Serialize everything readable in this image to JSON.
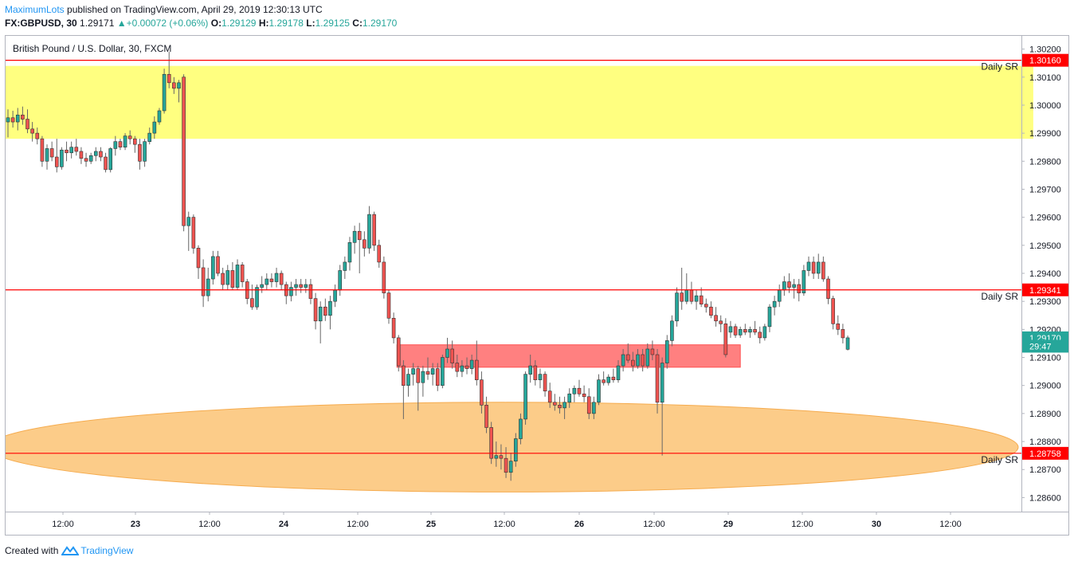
{
  "header": {
    "publisher": "MaximumLots",
    "published_text": "published on TradingView.com, April 29, 2019 12:30:13 UTC",
    "symbol": "FX:GBPUSD, 30",
    "last": "1.29171",
    "change": "+0.00072 (+0.06%)",
    "o_label": "O:",
    "o_val": "1.29129",
    "h_label": "H:",
    "h_val": "1.29178",
    "l_label": "L:",
    "l_val": "1.29125",
    "c_label": "C:",
    "c_val": "1.29170"
  },
  "footer": {
    "created_with": "Created with",
    "brand": "TradingView"
  },
  "colors": {
    "up": "#26a69a",
    "down": "#ef5350",
    "sr_line": "#ff0000",
    "yellow_zone": "#ffff80",
    "red_zone": "#ff8080",
    "orange_zone": "#fcc77d"
  },
  "chart_data": {
    "type": "candlestick",
    "title": "British Pound / U.S. Dollar, 30, FXCM",
    "ylim": [
      1.2855,
      1.3025
    ],
    "y_ticks": [
      "1.30200",
      "1.30100",
      "1.30000",
      "1.29900",
      "1.29800",
      "1.29700",
      "1.29600",
      "1.29500",
      "1.29400",
      "1.29300",
      "1.29200",
      "1.29100",
      "1.29000",
      "1.28900",
      "1.28800",
      "1.28700",
      "1.28600"
    ],
    "x_labels": [
      "12:00",
      "23",
      "12:00",
      "24",
      "12:00",
      "25",
      "12:00",
      "26",
      "12:00",
      "29",
      "12:00",
      "30",
      "12:00"
    ],
    "price_tags": [
      {
        "label": "1.30160",
        "value": 1.3016,
        "color": "#ff0000"
      },
      {
        "label": "1.29341",
        "value": 1.29341,
        "color": "#ff0000"
      },
      {
        "label": "1.28758",
        "value": 1.28758,
        "color": "#ff0000"
      },
      {
        "label": "1.29170",
        "value": 1.2917,
        "color": "#26a69a"
      },
      {
        "label": "29:47",
        "value": 1.2914,
        "color": "#26a69a"
      }
    ],
    "sr_lines": [
      {
        "value": 1.3016,
        "label": "Daily SR"
      },
      {
        "value": 1.29341,
        "label": "Daily SR"
      },
      {
        "value": 1.28758,
        "label": "Daily SR"
      }
    ],
    "zones": [
      {
        "kind": "rect",
        "from": 1.2988,
        "to": 1.3014,
        "x_start": 0,
        "x_end": 210,
        "color": "#ffff80"
      },
      {
        "kind": "rect",
        "from": 1.29065,
        "to": 1.29145,
        "x_start": 80,
        "x_end": 150,
        "color": "#ff8080"
      },
      {
        "kind": "ellipse",
        "center": 1.2878,
        "half_height": 0.0016,
        "x_start": 0,
        "x_end": 203,
        "color": "#fcc77d"
      }
    ],
    "candles": [
      {
        "o": 1.2994,
        "h": 1.29985,
        "l": 1.29885,
        "c": 1.29955
      },
      {
        "o": 1.29955,
        "h": 1.2998,
        "l": 1.2992,
        "c": 1.2994
      },
      {
        "o": 1.2994,
        "h": 1.2999,
        "l": 1.2991,
        "c": 1.29965
      },
      {
        "o": 1.29965,
        "h": 1.29995,
        "l": 1.2993,
        "c": 1.2995
      },
      {
        "o": 1.2995,
        "h": 1.29985,
        "l": 1.299,
        "c": 1.29915
      },
      {
        "o": 1.29915,
        "h": 1.2994,
        "l": 1.2987,
        "c": 1.299
      },
      {
        "o": 1.299,
        "h": 1.2992,
        "l": 1.2986,
        "c": 1.2988
      },
      {
        "o": 1.2988,
        "h": 1.2989,
        "l": 1.2978,
        "c": 1.298
      },
      {
        "o": 1.298,
        "h": 1.2986,
        "l": 1.2977,
        "c": 1.29845
      },
      {
        "o": 1.29845,
        "h": 1.2987,
        "l": 1.298,
        "c": 1.29815
      },
      {
        "o": 1.29815,
        "h": 1.2988,
        "l": 1.2976,
        "c": 1.2978
      },
      {
        "o": 1.2978,
        "h": 1.2985,
        "l": 1.2977,
        "c": 1.2984
      },
      {
        "o": 1.2984,
        "h": 1.2987,
        "l": 1.298,
        "c": 1.2983
      },
      {
        "o": 1.2983,
        "h": 1.2987,
        "l": 1.2981,
        "c": 1.2985
      },
      {
        "o": 1.2985,
        "h": 1.2988,
        "l": 1.2982,
        "c": 1.29835
      },
      {
        "o": 1.29835,
        "h": 1.2985,
        "l": 1.2979,
        "c": 1.2981
      },
      {
        "o": 1.2981,
        "h": 1.2983,
        "l": 1.2978,
        "c": 1.298
      },
      {
        "o": 1.298,
        "h": 1.2983,
        "l": 1.2979,
        "c": 1.2982
      },
      {
        "o": 1.2982,
        "h": 1.2985,
        "l": 1.298,
        "c": 1.29835
      },
      {
        "o": 1.29835,
        "h": 1.2985,
        "l": 1.298,
        "c": 1.29815
      },
      {
        "o": 1.29815,
        "h": 1.2983,
        "l": 1.2976,
        "c": 1.2977
      },
      {
        "o": 1.2977,
        "h": 1.2985,
        "l": 1.2976,
        "c": 1.29845
      },
      {
        "o": 1.29845,
        "h": 1.2989,
        "l": 1.2982,
        "c": 1.2987
      },
      {
        "o": 1.2987,
        "h": 1.2988,
        "l": 1.2984,
        "c": 1.2985
      },
      {
        "o": 1.2985,
        "h": 1.299,
        "l": 1.2984,
        "c": 1.2989
      },
      {
        "o": 1.2989,
        "h": 1.2991,
        "l": 1.2986,
        "c": 1.2988
      },
      {
        "o": 1.2988,
        "h": 1.2989,
        "l": 1.2983,
        "c": 1.2986
      },
      {
        "o": 1.2986,
        "h": 1.2988,
        "l": 1.2977,
        "c": 1.298
      },
      {
        "o": 1.298,
        "h": 1.2988,
        "l": 1.2978,
        "c": 1.2987
      },
      {
        "o": 1.2987,
        "h": 1.2992,
        "l": 1.2986,
        "c": 1.299
      },
      {
        "o": 1.299,
        "h": 1.2996,
        "l": 1.2988,
        "c": 1.2994
      },
      {
        "o": 1.2994,
        "h": 1.2999,
        "l": 1.2993,
        "c": 1.2998
      },
      {
        "o": 1.2998,
        "h": 1.3013,
        "l": 1.2997,
        "c": 1.3011
      },
      {
        "o": 1.3011,
        "h": 1.3019,
        "l": 1.3006,
        "c": 1.3008
      },
      {
        "o": 1.3008,
        "h": 1.301,
        "l": 1.3004,
        "c": 1.3006
      },
      {
        "o": 1.3006,
        "h": 1.3009,
        "l": 1.3001,
        "c": 1.3008
      },
      {
        "o": 1.301,
        "h": 1.3011,
        "l": 1.2955,
        "c": 1.2957
      },
      {
        "o": 1.2957,
        "h": 1.2962,
        "l": 1.2948,
        "c": 1.296
      },
      {
        "o": 1.296,
        "h": 1.2961,
        "l": 1.2947,
        "c": 1.2949
      },
      {
        "o": 1.2949,
        "h": 1.295,
        "l": 1.2938,
        "c": 1.2942
      },
      {
        "o": 1.2942,
        "h": 1.2945,
        "l": 1.2928,
        "c": 1.2932
      },
      {
        "o": 1.2932,
        "h": 1.2942,
        "l": 1.293,
        "c": 1.2938
      },
      {
        "o": 1.2938,
        "h": 1.2948,
        "l": 1.2936,
        "c": 1.2946
      },
      {
        "o": 1.2946,
        "h": 1.2948,
        "l": 1.2939,
        "c": 1.294
      },
      {
        "o": 1.294,
        "h": 1.2942,
        "l": 1.2934,
        "c": 1.2936
      },
      {
        "o": 1.2936,
        "h": 1.2943,
        "l": 1.2934,
        "c": 1.2941
      },
      {
        "o": 1.2941,
        "h": 1.2944,
        "l": 1.2934,
        "c": 1.2935
      },
      {
        "o": 1.2935,
        "h": 1.2945,
        "l": 1.2934,
        "c": 1.2943
      },
      {
        "o": 1.2943,
        "h": 1.2944,
        "l": 1.2935,
        "c": 1.2937
      },
      {
        "o": 1.2937,
        "h": 1.2938,
        "l": 1.2929,
        "c": 1.2931
      },
      {
        "o": 1.2931,
        "h": 1.2936,
        "l": 1.2927,
        "c": 1.2928
      },
      {
        "o": 1.2928,
        "h": 1.2936,
        "l": 1.2927,
        "c": 1.2935
      },
      {
        "o": 1.2935,
        "h": 1.2939,
        "l": 1.2933,
        "c": 1.2936
      },
      {
        "o": 1.2936,
        "h": 1.294,
        "l": 1.2934,
        "c": 1.2938
      },
      {
        "o": 1.2938,
        "h": 1.294,
        "l": 1.2935,
        "c": 1.2937
      },
      {
        "o": 1.2937,
        "h": 1.2942,
        "l": 1.2935,
        "c": 1.294
      },
      {
        "o": 1.294,
        "h": 1.2941,
        "l": 1.2934,
        "c": 1.2936
      },
      {
        "o": 1.2936,
        "h": 1.2937,
        "l": 1.2929,
        "c": 1.2932
      },
      {
        "o": 1.2932,
        "h": 1.2937,
        "l": 1.293,
        "c": 1.2935
      },
      {
        "o": 1.2935,
        "h": 1.2938,
        "l": 1.2932,
        "c": 1.2936
      },
      {
        "o": 1.2936,
        "h": 1.2938,
        "l": 1.2933,
        "c": 1.2935
      },
      {
        "o": 1.2935,
        "h": 1.2938,
        "l": 1.2933,
        "c": 1.2936
      },
      {
        "o": 1.2936,
        "h": 1.2938,
        "l": 1.2929,
        "c": 1.2931
      },
      {
        "o": 1.2931,
        "h": 1.2933,
        "l": 1.292,
        "c": 1.2923
      },
      {
        "o": 1.2923,
        "h": 1.293,
        "l": 1.2915,
        "c": 1.2928
      },
      {
        "o": 1.2928,
        "h": 1.2931,
        "l": 1.2923,
        "c": 1.2925
      },
      {
        "o": 1.2925,
        "h": 1.2932,
        "l": 1.292,
        "c": 1.293
      },
      {
        "o": 1.293,
        "h": 1.2936,
        "l": 1.2928,
        "c": 1.2934
      },
      {
        "o": 1.2934,
        "h": 1.2943,
        "l": 1.2932,
        "c": 1.2941
      },
      {
        "o": 1.2941,
        "h": 1.2946,
        "l": 1.2938,
        "c": 1.2944
      },
      {
        "o": 1.2944,
        "h": 1.2953,
        "l": 1.2941,
        "c": 1.2951
      },
      {
        "o": 1.2951,
        "h": 1.2957,
        "l": 1.2947,
        "c": 1.2955
      },
      {
        "o": 1.2955,
        "h": 1.2958,
        "l": 1.294,
        "c": 1.2952
      },
      {
        "o": 1.2952,
        "h": 1.2955,
        "l": 1.2946,
        "c": 1.2949
      },
      {
        "o": 1.2949,
        "h": 1.2964,
        "l": 1.2947,
        "c": 1.2961
      },
      {
        "o": 1.2961,
        "h": 1.2962,
        "l": 1.2948,
        "c": 1.295
      },
      {
        "o": 1.295,
        "h": 1.2952,
        "l": 1.2942,
        "c": 1.2944
      },
      {
        "o": 1.2944,
        "h": 1.2946,
        "l": 1.2931,
        "c": 1.2933
      },
      {
        "o": 1.2933,
        "h": 1.2934,
        "l": 1.2922,
        "c": 1.2924
      },
      {
        "o": 1.2924,
        "h": 1.2926,
        "l": 1.2915,
        "c": 1.2917
      },
      {
        "o": 1.2917,
        "h": 1.2918,
        "l": 1.2905,
        "c": 1.2907
      },
      {
        "o": 1.2907,
        "h": 1.2909,
        "l": 1.2888,
        "c": 1.29
      },
      {
        "o": 1.29,
        "h": 1.2906,
        "l": 1.2896,
        "c": 1.2904
      },
      {
        "o": 1.2904,
        "h": 1.2908,
        "l": 1.29,
        "c": 1.2906
      },
      {
        "o": 1.2906,
        "h": 1.2907,
        "l": 1.2891,
        "c": 1.2901
      },
      {
        "o": 1.2901,
        "h": 1.2907,
        "l": 1.2896,
        "c": 1.2905
      },
      {
        "o": 1.2905,
        "h": 1.291,
        "l": 1.2902,
        "c": 1.2904
      },
      {
        "o": 1.2904,
        "h": 1.2908,
        "l": 1.29,
        "c": 1.2906
      },
      {
        "o": 1.2906,
        "h": 1.2908,
        "l": 1.2898,
        "c": 1.29
      },
      {
        "o": 1.29,
        "h": 1.2911,
        "l": 1.2899,
        "c": 1.291
      },
      {
        "o": 1.291,
        "h": 1.2917,
        "l": 1.2908,
        "c": 1.2913
      },
      {
        "o": 1.2913,
        "h": 1.2916,
        "l": 1.2906,
        "c": 1.2908
      },
      {
        "o": 1.2908,
        "h": 1.2911,
        "l": 1.2903,
        "c": 1.2905
      },
      {
        "o": 1.2905,
        "h": 1.2909,
        "l": 1.2903,
        "c": 1.2907
      },
      {
        "o": 1.2907,
        "h": 1.291,
        "l": 1.2904,
        "c": 1.2906
      },
      {
        "o": 1.2906,
        "h": 1.2911,
        "l": 1.2904,
        "c": 1.2909
      },
      {
        "o": 1.2909,
        "h": 1.2916,
        "l": 1.29,
        "c": 1.2902
      },
      {
        "o": 1.2902,
        "h": 1.2905,
        "l": 1.289,
        "c": 1.2893
      },
      {
        "o": 1.2893,
        "h": 1.2896,
        "l": 1.2883,
        "c": 1.2885
      },
      {
        "o": 1.2885,
        "h": 1.2887,
        "l": 1.2872,
        "c": 1.2874
      },
      {
        "o": 1.2874,
        "h": 1.288,
        "l": 1.2871,
        "c": 1.2875
      },
      {
        "o": 1.2875,
        "h": 1.2879,
        "l": 1.287,
        "c": 1.2874
      },
      {
        "o": 1.2874,
        "h": 1.2878,
        "l": 1.2867,
        "c": 1.2869
      },
      {
        "o": 1.2869,
        "h": 1.2876,
        "l": 1.2866,
        "c": 1.2873
      },
      {
        "o": 1.2873,
        "h": 1.2883,
        "l": 1.2871,
        "c": 1.2881
      },
      {
        "o": 1.2881,
        "h": 1.289,
        "l": 1.2879,
        "c": 1.2888
      },
      {
        "o": 1.2888,
        "h": 1.2905,
        "l": 1.2886,
        "c": 1.2904
      },
      {
        "o": 1.2904,
        "h": 1.2911,
        "l": 1.2901,
        "c": 1.2907
      },
      {
        "o": 1.2907,
        "h": 1.2909,
        "l": 1.29,
        "c": 1.2902
      },
      {
        "o": 1.2902,
        "h": 1.2906,
        "l": 1.2899,
        "c": 1.2904
      },
      {
        "o": 1.2904,
        "h": 1.2905,
        "l": 1.2896,
        "c": 1.2898
      },
      {
        "o": 1.2898,
        "h": 1.2901,
        "l": 1.2892,
        "c": 1.2894
      },
      {
        "o": 1.2894,
        "h": 1.2897,
        "l": 1.2891,
        "c": 1.2893
      },
      {
        "o": 1.2893,
        "h": 1.2896,
        "l": 1.289,
        "c": 1.2892
      },
      {
        "o": 1.2892,
        "h": 1.2896,
        "l": 1.2888,
        "c": 1.2894
      },
      {
        "o": 1.2894,
        "h": 1.2899,
        "l": 1.2892,
        "c": 1.2897
      },
      {
        "o": 1.2897,
        "h": 1.29,
        "l": 1.2894,
        "c": 1.2899
      },
      {
        "o": 1.2899,
        "h": 1.2902,
        "l": 1.2896,
        "c": 1.2897
      },
      {
        "o": 1.2897,
        "h": 1.29,
        "l": 1.2894,
        "c": 1.2896
      },
      {
        "o": 1.2896,
        "h": 1.2899,
        "l": 1.2888,
        "c": 1.289
      },
      {
        "o": 1.289,
        "h": 1.2896,
        "l": 1.2888,
        "c": 1.2894
      },
      {
        "o": 1.2894,
        "h": 1.2904,
        "l": 1.2893,
        "c": 1.2902
      },
      {
        "o": 1.2902,
        "h": 1.2905,
        "l": 1.29,
        "c": 1.2901
      },
      {
        "o": 1.2901,
        "h": 1.2904,
        "l": 1.29,
        "c": 1.2903
      },
      {
        "o": 1.2903,
        "h": 1.2906,
        "l": 1.2901,
        "c": 1.2902
      },
      {
        "o": 1.2902,
        "h": 1.2909,
        "l": 1.2901,
        "c": 1.2907
      },
      {
        "o": 1.2907,
        "h": 1.2913,
        "l": 1.2905,
        "c": 1.2911
      },
      {
        "o": 1.2911,
        "h": 1.2915,
        "l": 1.2908,
        "c": 1.2909
      },
      {
        "o": 1.2909,
        "h": 1.2912,
        "l": 1.2905,
        "c": 1.2907
      },
      {
        "o": 1.2907,
        "h": 1.2913,
        "l": 1.2906,
        "c": 1.2911
      },
      {
        "o": 1.2911,
        "h": 1.2913,
        "l": 1.2905,
        "c": 1.2907
      },
      {
        "o": 1.2907,
        "h": 1.2915,
        "l": 1.2906,
        "c": 1.2913
      },
      {
        "o": 1.2913,
        "h": 1.2916,
        "l": 1.2909,
        "c": 1.2911
      },
      {
        "o": 1.2911,
        "h": 1.2913,
        "l": 1.289,
        "c": 1.2894
      },
      {
        "o": 1.2894,
        "h": 1.291,
        "l": 1.2875,
        "c": 1.2908
      },
      {
        "o": 1.2908,
        "h": 1.2918,
        "l": 1.2906,
        "c": 1.2916
      },
      {
        "o": 1.2916,
        "h": 1.2925,
        "l": 1.2914,
        "c": 1.2923
      },
      {
        "o": 1.2923,
        "h": 1.2935,
        "l": 1.2921,
        "c": 1.2933
      },
      {
        "o": 1.2933,
        "h": 1.2942,
        "l": 1.2927,
        "c": 1.293
      },
      {
        "o": 1.293,
        "h": 1.294,
        "l": 1.2929,
        "c": 1.2934
      },
      {
        "o": 1.2934,
        "h": 1.2937,
        "l": 1.2929,
        "c": 1.293
      },
      {
        "o": 1.293,
        "h": 1.2934,
        "l": 1.2927,
        "c": 1.2932
      },
      {
        "o": 1.2932,
        "h": 1.2935,
        "l": 1.2928,
        "c": 1.2929
      },
      {
        "o": 1.2929,
        "h": 1.2931,
        "l": 1.2926,
        "c": 1.2928
      },
      {
        "o": 1.2928,
        "h": 1.293,
        "l": 1.2924,
        "c": 1.2925
      },
      {
        "o": 1.2925,
        "h": 1.2928,
        "l": 1.2921,
        "c": 1.2923
      },
      {
        "o": 1.2923,
        "h": 1.2925,
        "l": 1.2919,
        "c": 1.2922
      },
      {
        "o": 1.2922,
        "h": 1.2924,
        "l": 1.291,
        "c": 1.2911
      },
      {
        "o": 1.2919,
        "h": 1.2923,
        "l": 1.2917,
        "c": 1.2921
      },
      {
        "o": 1.2921,
        "h": 1.2922,
        "l": 1.2917,
        "c": 1.2918
      },
      {
        "o": 1.2918,
        "h": 1.2921,
        "l": 1.2917,
        "c": 1.292
      },
      {
        "o": 1.292,
        "h": 1.2922,
        "l": 1.2918,
        "c": 1.2919
      },
      {
        "o": 1.2919,
        "h": 1.2921,
        "l": 1.2917,
        "c": 1.292
      },
      {
        "o": 1.292,
        "h": 1.2923,
        "l": 1.2918,
        "c": 1.2919
      },
      {
        "o": 1.2919,
        "h": 1.2921,
        "l": 1.2915,
        "c": 1.2917
      },
      {
        "o": 1.2917,
        "h": 1.2922,
        "l": 1.2916,
        "c": 1.2921
      },
      {
        "o": 1.2921,
        "h": 1.2929,
        "l": 1.2919,
        "c": 1.2928
      },
      {
        "o": 1.2928,
        "h": 1.2932,
        "l": 1.2925,
        "c": 1.293
      },
      {
        "o": 1.293,
        "h": 1.2936,
        "l": 1.2928,
        "c": 1.2934
      },
      {
        "o": 1.2934,
        "h": 1.2939,
        "l": 1.2932,
        "c": 1.2937
      },
      {
        "o": 1.2937,
        "h": 1.294,
        "l": 1.2933,
        "c": 1.2935
      },
      {
        "o": 1.2935,
        "h": 1.2938,
        "l": 1.2931,
        "c": 1.2936
      },
      {
        "o": 1.2936,
        "h": 1.2938,
        "l": 1.293,
        "c": 1.2933
      },
      {
        "o": 1.2933,
        "h": 1.2943,
        "l": 1.2932,
        "c": 1.2941
      },
      {
        "o": 1.2941,
        "h": 1.2946,
        "l": 1.2939,
        "c": 1.2944
      },
      {
        "o": 1.2944,
        "h": 1.2946,
        "l": 1.2938,
        "c": 1.294
      },
      {
        "o": 1.294,
        "h": 1.2947,
        "l": 1.2938,
        "c": 1.2944
      },
      {
        "o": 1.2944,
        "h": 1.2946,
        "l": 1.2937,
        "c": 1.2938
      },
      {
        "o": 1.2938,
        "h": 1.2939,
        "l": 1.2929,
        "c": 1.2931
      },
      {
        "o": 1.2931,
        "h": 1.2932,
        "l": 1.292,
        "c": 1.2922
      },
      {
        "o": 1.2922,
        "h": 1.2925,
        "l": 1.2918,
        "c": 1.292
      },
      {
        "o": 1.292,
        "h": 1.2922,
        "l": 1.2915,
        "c": 1.2917
      },
      {
        "o": 1.29129,
        "h": 1.29178,
        "l": 1.29125,
        "c": 1.2917
      }
    ]
  }
}
